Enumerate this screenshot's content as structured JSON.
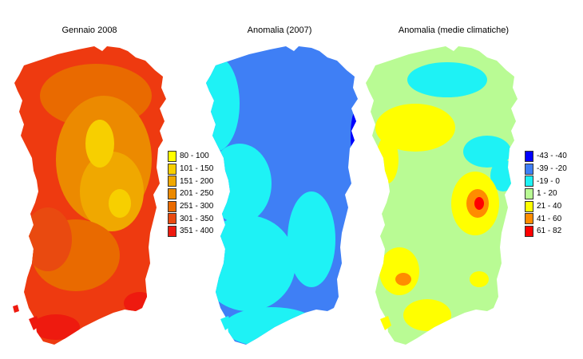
{
  "panels": [
    {
      "title": "Gennaio 2008"
    },
    {
      "title": "Anomalia (2007)"
    },
    {
      "title": "Anomalia (medie climatiche)"
    }
  ],
  "legend_precip": [
    {
      "label": "80 - 100",
      "color": "#ffff00"
    },
    {
      "label": "101 - 150",
      "color": "#f7cf00"
    },
    {
      "label": "151 - 200",
      "color": "#f0a800"
    },
    {
      "label": "201 - 250",
      "color": "#ec8a00"
    },
    {
      "label": "251 - 300",
      "color": "#e96a00"
    },
    {
      "label": "301 - 350",
      "color": "#e94a10"
    },
    {
      "label": "351 - 400",
      "color": "#ee1a0f"
    }
  ],
  "legend_anomaly": [
    {
      "label": "-43 - -40",
      "color": "#0000ff"
    },
    {
      "label": "-39 - -20",
      "color": "#3f7ff5"
    },
    {
      "label": "-19 - 0",
      "color": "#1ef2f5"
    },
    {
      "label": "1 - 20",
      "color": "#b9fb94"
    },
    {
      "label": "21 - 40",
      "color": "#ffff00"
    },
    {
      "label": "41 - 60",
      "color": "#ff8c00"
    },
    {
      "label": "61 - 82",
      "color": "#ff0000"
    }
  ]
}
